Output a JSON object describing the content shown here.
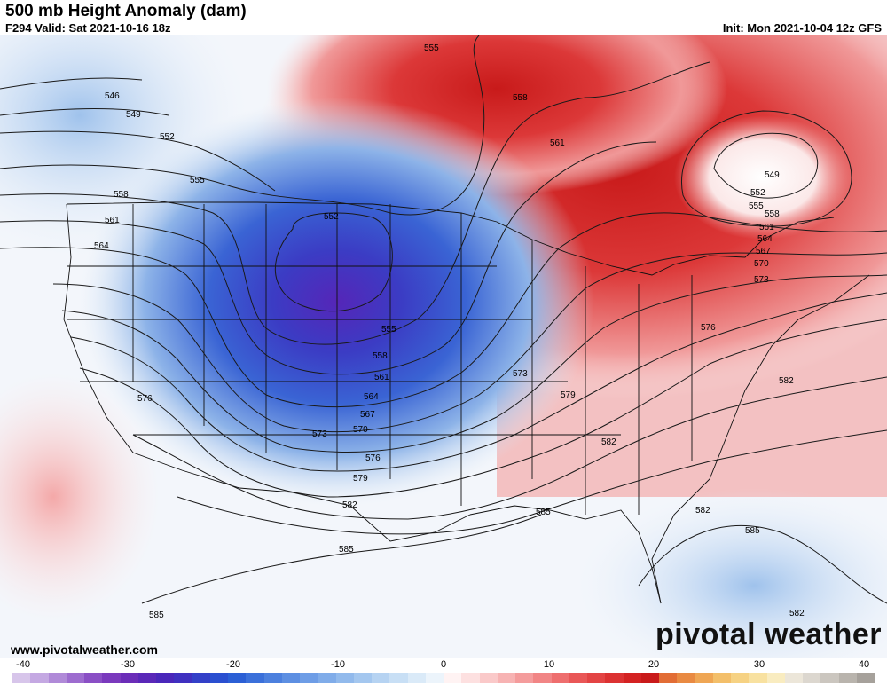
{
  "header": {
    "title": "500 mb Height Anomaly (dam)",
    "valid": "F294 Valid: Sat 2021-10-16 18z",
    "init": "Init: Mon 2021-10-04 12z GFS"
  },
  "footer": {
    "website": "www.pivotalweather.com",
    "brand": "pivotal weather"
  },
  "colorbar": {
    "ticks": [
      "-40",
      "-30",
      "-20",
      "-10",
      "0",
      "10",
      "20",
      "30",
      "40"
    ],
    "colors": [
      "#d7c5ea",
      "#c4a8e2",
      "#b08ad8",
      "#9d6ccf",
      "#8a4fc5",
      "#7a39bd",
      "#6b2db8",
      "#5a28b8",
      "#4a27ba",
      "#3f30c0",
      "#3340c8",
      "#2a4fd0",
      "#2b5fd5",
      "#3b70da",
      "#4c80de",
      "#5d8fe2",
      "#6e9de6",
      "#80ace9",
      "#92baec",
      "#a4c7ef",
      "#b6d3f2",
      "#c8dff5",
      "#daeaf8",
      "#ecf4fb",
      "#fff3f3",
      "#fde0e0",
      "#fac9c9",
      "#f7b3b3",
      "#f49c9c",
      "#f18585",
      "#ee6e6e",
      "#e95757",
      "#e34444",
      "#dc3232",
      "#d42222",
      "#c91a1a",
      "#e26d35",
      "#e98a42",
      "#efa654",
      "#f3bf6a",
      "#f6d283",
      "#f8e1a0",
      "#f9ecc0",
      "#ece6d9",
      "#dcd7cf",
      "#cbc6bf",
      "#b9b4ad",
      "#a6a19b"
    ]
  },
  "contour_labels": [
    "546",
    "549",
    "552",
    "555",
    "558",
    "561",
    "564",
    "567",
    "570",
    "573",
    "576",
    "579",
    "582",
    "585"
  ],
  "map": {
    "center_low_label": "552",
    "canada_low_label": "549"
  }
}
